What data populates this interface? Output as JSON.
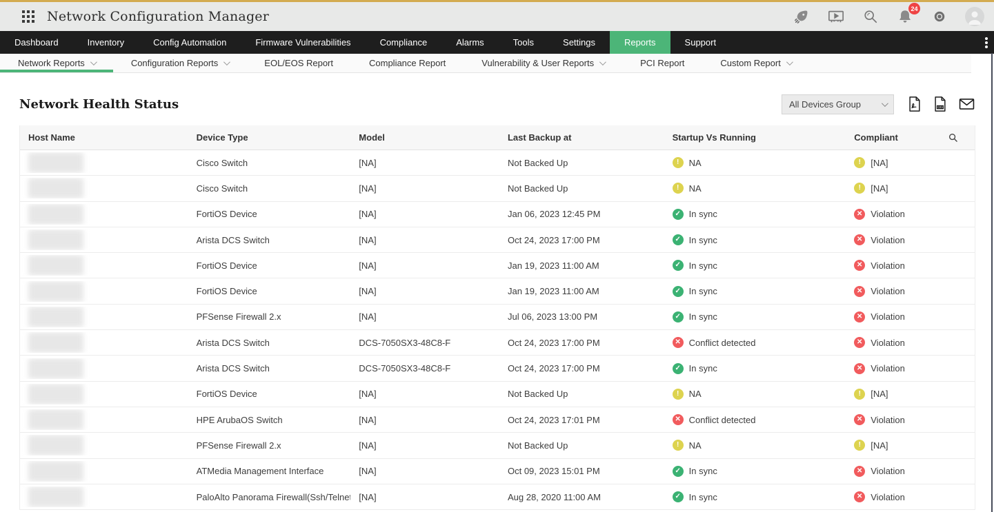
{
  "topbar": {
    "title": "Network Configuration Manager",
    "notification_count": "24"
  },
  "navbar": {
    "items": [
      "Dashboard",
      "Inventory",
      "Config Automation",
      "Firmware Vulnerabilities",
      "Compliance",
      "Alarms",
      "Tools",
      "Settings",
      "Reports",
      "Support"
    ],
    "active": "Reports"
  },
  "subnav": {
    "items": [
      {
        "label": "Network Reports",
        "dropdown": true,
        "active": true
      },
      {
        "label": "Configuration Reports",
        "dropdown": true,
        "active": false
      },
      {
        "label": "EOL/EOS Report",
        "dropdown": false,
        "active": false
      },
      {
        "label": "Compliance Report",
        "dropdown": false,
        "active": false
      },
      {
        "label": "Vulnerability & User Reports",
        "dropdown": true,
        "active": false
      },
      {
        "label": "PCI Report",
        "dropdown": false,
        "active": false
      },
      {
        "label": "Custom Report",
        "dropdown": true,
        "active": false
      }
    ]
  },
  "page": {
    "title": "Network Health Status",
    "group_selector_value": "All Devices Group"
  },
  "table": {
    "columns": [
      "Host Name",
      "Device Type",
      "Model",
      "Last Backup at",
      "Startup Vs Running",
      "Compliant"
    ],
    "status_glyphs": {
      "ok": "✓",
      "error": "✕",
      "warn": "!"
    },
    "rows": [
      {
        "device_type": "Cisco Switch",
        "model": "[NA]",
        "last_backup": "Not Backed Up",
        "startup_state": "warn",
        "startup_label": "NA",
        "compliant_state": "warn",
        "compliant_label": "[NA]"
      },
      {
        "device_type": "Cisco Switch",
        "model": "[NA]",
        "last_backup": "Not Backed Up",
        "startup_state": "warn",
        "startup_label": "NA",
        "compliant_state": "warn",
        "compliant_label": "[NA]"
      },
      {
        "device_type": "FortiOS Device",
        "model": "[NA]",
        "last_backup": "Jan 06, 2023 12:45 PM",
        "startup_state": "ok",
        "startup_label": "In sync",
        "compliant_state": "error",
        "compliant_label": "Violation"
      },
      {
        "device_type": "Arista DCS Switch",
        "model": "[NA]",
        "last_backup": "Oct 24, 2023 17:00 PM",
        "startup_state": "ok",
        "startup_label": "In sync",
        "compliant_state": "error",
        "compliant_label": "Violation"
      },
      {
        "device_type": "FortiOS Device",
        "model": "[NA]",
        "last_backup": "Jan 19, 2023 11:00 AM",
        "startup_state": "ok",
        "startup_label": "In sync",
        "compliant_state": "error",
        "compliant_label": "Violation"
      },
      {
        "device_type": "FortiOS Device",
        "model": "[NA]",
        "last_backup": "Jan 19, 2023 11:00 AM",
        "startup_state": "ok",
        "startup_label": "In sync",
        "compliant_state": "error",
        "compliant_label": "Violation"
      },
      {
        "device_type": "PFSense Firewall 2.x",
        "model": "[NA]",
        "last_backup": "Jul 06, 2023 13:00 PM",
        "startup_state": "ok",
        "startup_label": "In sync",
        "compliant_state": "error",
        "compliant_label": "Violation"
      },
      {
        "device_type": "Arista DCS Switch",
        "model": "DCS-7050SX3-48C8-F",
        "last_backup": "Oct 24, 2023 17:00 PM",
        "startup_state": "error",
        "startup_label": "Conflict detected",
        "compliant_state": "error",
        "compliant_label": "Violation"
      },
      {
        "device_type": "Arista DCS Switch",
        "model": "DCS-7050SX3-48C8-F",
        "last_backup": "Oct 24, 2023 17:00 PM",
        "startup_state": "ok",
        "startup_label": "In sync",
        "compliant_state": "error",
        "compliant_label": "Violation"
      },
      {
        "device_type": "FortiOS Device",
        "model": "[NA]",
        "last_backup": "Not Backed Up",
        "startup_state": "warn",
        "startup_label": "NA",
        "compliant_state": "warn",
        "compliant_label": "[NA]"
      },
      {
        "device_type": "HPE ArubaOS Switch",
        "model": "[NA]",
        "last_backup": "Oct 24, 2023 17:01 PM",
        "startup_state": "error",
        "startup_label": "Conflict detected",
        "compliant_state": "error",
        "compliant_label": "Violation"
      },
      {
        "device_type": "PFSense Firewall 2.x",
        "model": "[NA]",
        "last_backup": "Not Backed Up",
        "startup_state": "warn",
        "startup_label": "NA",
        "compliant_state": "warn",
        "compliant_label": "[NA]"
      },
      {
        "device_type": "ATMedia Management Interface",
        "model": "[NA]",
        "last_backup": "Oct 09, 2023 15:01 PM",
        "startup_state": "ok",
        "startup_label": "In sync",
        "compliant_state": "error",
        "compliant_label": "Violation"
      },
      {
        "device_type": "PaloAlto Panorama Firewall(Ssh/Telnet)",
        "model": "[NA]",
        "last_backup": "Aug 28, 2020 11:00 AM",
        "startup_state": "ok",
        "startup_label": "In sync",
        "compliant_state": "error",
        "compliant_label": "Violation"
      }
    ]
  },
  "colors": {
    "accent_green": "#4cb578",
    "status_ok": "#3bb273",
    "status_error": "#f15b5d",
    "status_warn": "#ddd34f",
    "badge_red": "#ef4444",
    "topbar_gold": "#d3ab50"
  }
}
